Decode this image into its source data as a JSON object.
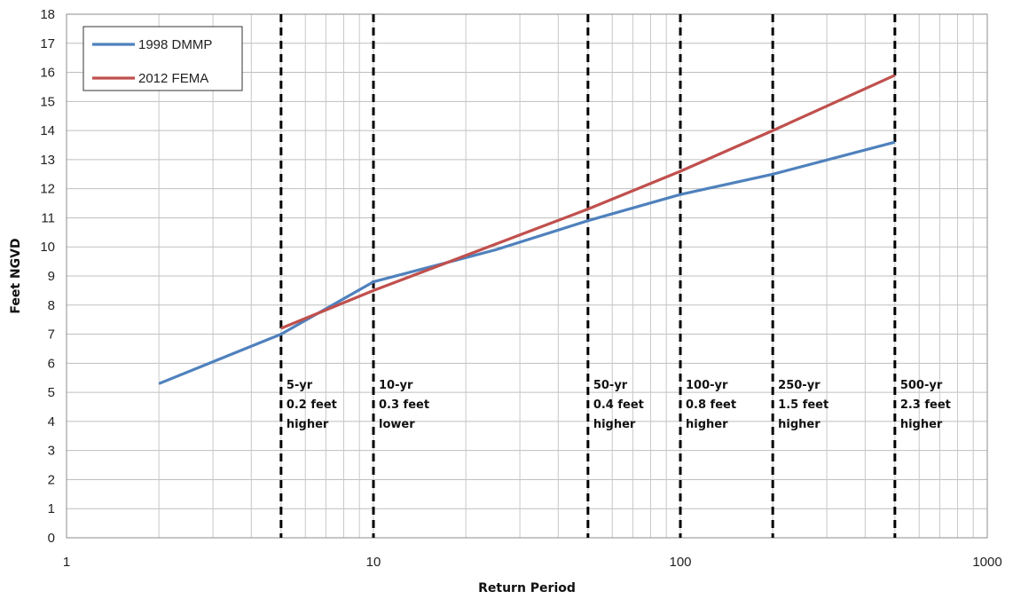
{
  "chart_data": {
    "type": "line",
    "xlabel": "Return Period",
    "ylabel": "Feet NGVD",
    "x_scale": "log",
    "xlim": [
      1,
      1000
    ],
    "ylim": [
      0,
      18
    ],
    "x_ticks": [
      "1",
      "10",
      "100",
      "1000"
    ],
    "y_ticks": [
      "0",
      "1",
      "2",
      "3",
      "4",
      "5",
      "6",
      "7",
      "8",
      "9",
      "10",
      "11",
      "12",
      "13",
      "14",
      "15",
      "16",
      "17",
      "18"
    ],
    "grid": true,
    "legend_position": "top-left",
    "series": [
      {
        "name": "1998 DMMP",
        "color": "#4f81bd",
        "x": [
          2,
          5,
          10,
          25,
          50,
          100,
          200,
          500
        ],
        "y": [
          5.3,
          7.0,
          8.8,
          9.9,
          10.9,
          11.8,
          12.5,
          13.6
        ]
      },
      {
        "name": "2012 FEMA",
        "color": "#c0504d",
        "x": [
          5,
          10,
          50,
          100,
          200,
          500
        ],
        "y": [
          7.2,
          8.5,
          11.3,
          12.6,
          14.0,
          15.9
        ]
      }
    ],
    "reference_lines": [
      {
        "x": 5,
        "lines": [
          "5-yr",
          "0.2 feet",
          "higher"
        ]
      },
      {
        "x": 10,
        "lines": [
          "10-yr",
          "0.3 feet",
          "lower"
        ]
      },
      {
        "x": 50,
        "lines": [
          "50-yr",
          "0.4 feet",
          "higher"
        ]
      },
      {
        "x": 100,
        "lines": [
          "100-yr",
          "0.8 feet",
          "higher"
        ]
      },
      {
        "x": 200,
        "lines": [
          "250-yr",
          "1.5 feet",
          "higher"
        ]
      },
      {
        "x": 500,
        "lines": [
          "500-yr",
          "2.3 feet",
          "higher"
        ]
      }
    ]
  }
}
